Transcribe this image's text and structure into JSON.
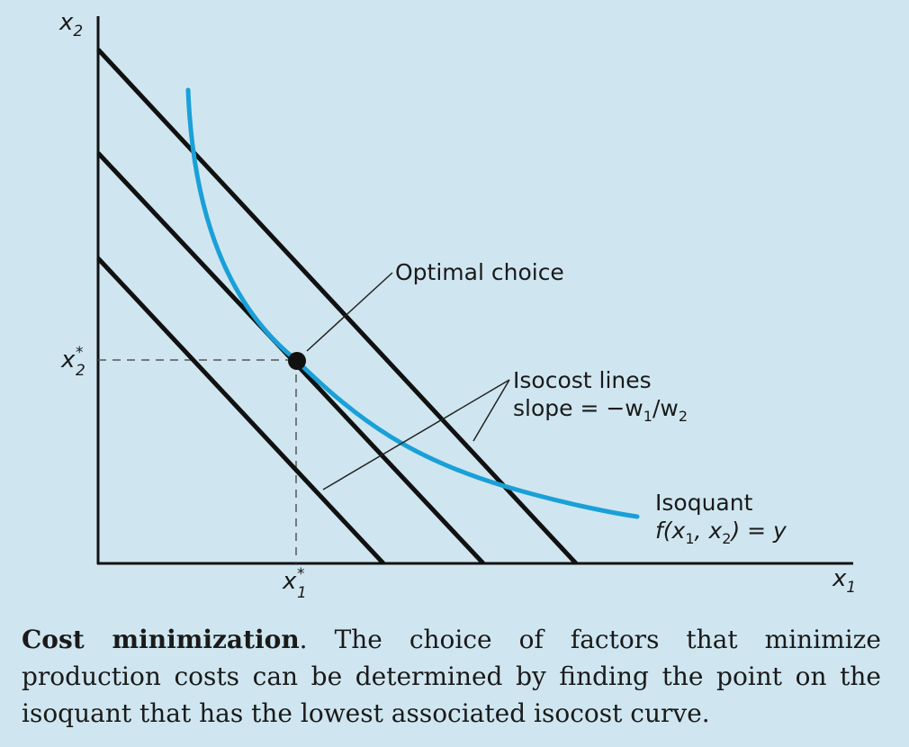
{
  "figure": {
    "axes": {
      "x_label": "x",
      "x_sub": "1",
      "y_label": "x",
      "y_sub": "2"
    },
    "markers": {
      "x_star_label": "x",
      "x_star_sup": "*",
      "x_star_sub": "1",
      "y_star_label": "x",
      "y_star_sup": "*",
      "y_star_sub": "2"
    },
    "annotations": {
      "optimal": "Optimal choice",
      "isocost_title": "Isocost lines",
      "isocost_slope_prefix": "slope = −w",
      "isocost_slope_sub1": "1",
      "isocost_slope_mid": "/w",
      "isocost_slope_sub2": "2",
      "isoquant_title": "Isoquant",
      "isoquant_eq_prefix": "f(x",
      "isoquant_eq_sub1": "1",
      "isoquant_eq_mid": ", x",
      "isoquant_eq_sub2": "2",
      "isoquant_eq_suffix": ") = y"
    },
    "colors": {
      "isoquant": "#1aa0d8",
      "isocost": "#111111",
      "background": "#cfe6f0"
    }
  },
  "caption": {
    "title": "Cost minimization",
    "text": ". The choice of factors that minimize production costs can be determined by finding the point on the isoquant that has the lowest associated isocost curve."
  }
}
